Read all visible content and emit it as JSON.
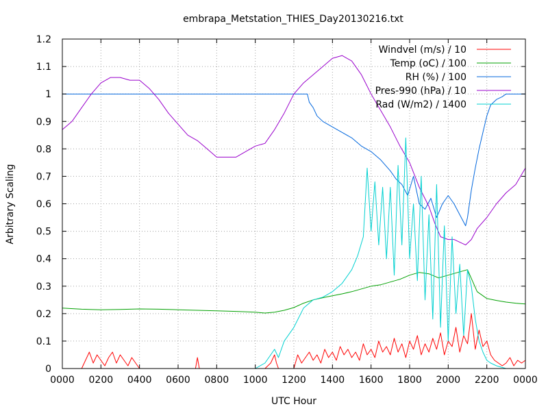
{
  "chart_data": {
    "type": "line",
    "title": "embrapa_Metstation_THIES_Day20130216.txt",
    "xlabel": "UTC Hour",
    "ylabel": "Arbitrary Scaling",
    "xlim": [
      0,
      24
    ],
    "ylim": [
      0,
      1.2
    ],
    "x_ticks": [
      "0000",
      "0200",
      "0400",
      "0600",
      "0800",
      "1000",
      "1200",
      "1400",
      "1600",
      "1800",
      "2000",
      "2200",
      "0000"
    ],
    "y_ticks": [
      "0",
      "0.1",
      "0.2",
      "0.3",
      "0.4",
      "0.5",
      "0.6",
      "0.7",
      "0.8",
      "0.9",
      "1",
      "1.1",
      "1.2"
    ],
    "grid": true,
    "legend_position": "top-right",
    "series": [
      {
        "name": "Windvel (m/s) / 10",
        "color": "#ff0000",
        "x": [
          0,
          1,
          1.2,
          1.4,
          1.6,
          1.8,
          2,
          2.2,
          2.4,
          2.6,
          2.8,
          3,
          3.2,
          3.4,
          3.6,
          3.8,
          4,
          6.9,
          7,
          7.1,
          10.5,
          10.8,
          11,
          11.1,
          11.2,
          12,
          12.2,
          12.4,
          12.6,
          12.8,
          13,
          13.2,
          13.4,
          13.6,
          13.8,
          14,
          14.2,
          14.4,
          14.6,
          14.8,
          15,
          15.2,
          15.4,
          15.6,
          15.8,
          16,
          16.2,
          16.4,
          16.6,
          16.8,
          17,
          17.2,
          17.4,
          17.6,
          17.8,
          18,
          18.2,
          18.4,
          18.6,
          18.8,
          19,
          19.2,
          19.4,
          19.6,
          19.8,
          20,
          20.2,
          20.4,
          20.6,
          20.8,
          21,
          21.2,
          21.4,
          21.6,
          21.8,
          22,
          22.2,
          22.4,
          22.6,
          22.8,
          23,
          23.2,
          23.4,
          23.6,
          23.8,
          24
        ],
        "y": [
          0,
          0,
          0.03,
          0.06,
          0.02,
          0.05,
          0.03,
          0.01,
          0.04,
          0.06,
          0.02,
          0.05,
          0.03,
          0.01,
          0.04,
          0.02,
          0,
          0,
          0.04,
          0,
          0,
          0.02,
          0.05,
          0.02,
          0,
          0,
          0.05,
          0.02,
          0.04,
          0.06,
          0.03,
          0.05,
          0.02,
          0.07,
          0.04,
          0.06,
          0.03,
          0.08,
          0.05,
          0.07,
          0.04,
          0.06,
          0.03,
          0.09,
          0.05,
          0.07,
          0.04,
          0.1,
          0.06,
          0.08,
          0.05,
          0.11,
          0.06,
          0.09,
          0.04,
          0.1,
          0.07,
          0.12,
          0.05,
          0.09,
          0.06,
          0.11,
          0.07,
          0.13,
          0.05,
          0.1,
          0.08,
          0.15,
          0.06,
          0.12,
          0.09,
          0.2,
          0.07,
          0.14,
          0.08,
          0.1,
          0.05,
          0.03,
          0.02,
          0.01,
          0.02,
          0.04,
          0.01,
          0.03,
          0.02,
          0.03
        ]
      },
      {
        "name": "Temp (oC) / 100",
        "color": "#00a000",
        "x": [
          0,
          1,
          2,
          3,
          4,
          5,
          6,
          7,
          8,
          9,
          10,
          10.5,
          11,
          11.5,
          12,
          12.5,
          13,
          13.5,
          14,
          14.5,
          15,
          15.5,
          16,
          16.5,
          17,
          17.5,
          18,
          18.5,
          19,
          19.5,
          20,
          20.5,
          21,
          21.5,
          22,
          22.5,
          23,
          23.5,
          24
        ],
        "y": [
          0.22,
          0.216,
          0.214,
          0.215,
          0.217,
          0.216,
          0.214,
          0.212,
          0.21,
          0.208,
          0.205,
          0.202,
          0.205,
          0.212,
          0.222,
          0.238,
          0.25,
          0.258,
          0.265,
          0.272,
          0.28,
          0.29,
          0.3,
          0.305,
          0.315,
          0.325,
          0.34,
          0.35,
          0.345,
          0.33,
          0.34,
          0.35,
          0.36,
          0.28,
          0.255,
          0.248,
          0.242,
          0.238,
          0.235
        ]
      },
      {
        "name": "RH (%) / 100",
        "color": "#0066dd",
        "x": [
          0,
          2,
          4,
          6,
          8,
          10,
          12,
          12.7,
          12.8,
          13,
          13.2,
          13.5,
          14,
          14.5,
          15,
          15.5,
          16,
          16.5,
          17,
          17.3,
          17.6,
          17.9,
          18.2,
          18.5,
          18.8,
          19.1,
          19.4,
          19.7,
          20,
          20.3,
          20.6,
          20.9,
          21,
          21.2,
          21.4,
          21.6,
          21.8,
          22,
          22.2,
          22.5,
          22.8,
          23,
          23.3,
          24
        ],
        "y": [
          1,
          1,
          1,
          1,
          1,
          1,
          1,
          1,
          0.97,
          0.95,
          0.92,
          0.9,
          0.88,
          0.86,
          0.84,
          0.81,
          0.79,
          0.76,
          0.72,
          0.69,
          0.67,
          0.63,
          0.7,
          0.6,
          0.58,
          0.62,
          0.55,
          0.6,
          0.63,
          0.6,
          0.56,
          0.52,
          0.55,
          0.65,
          0.73,
          0.8,
          0.86,
          0.92,
          0.96,
          0.98,
          0.99,
          1,
          1,
          1
        ]
      },
      {
        "name": "Pres-990 (hPa) / 10",
        "color": "#9900cc",
        "x": [
          0,
          0.5,
          1,
          1.5,
          2,
          2.5,
          3,
          3.5,
          4,
          4.5,
          5,
          5.5,
          6,
          6.5,
          7,
          7.5,
          8,
          8.5,
          9,
          9.5,
          10,
          10.5,
          11,
          11.5,
          12,
          12.5,
          13,
          13.5,
          14,
          14.5,
          15,
          15.5,
          16,
          16.5,
          17,
          17.5,
          18,
          18.5,
          19,
          19.3,
          19.6,
          20,
          20.3,
          20.6,
          20.9,
          21.2,
          21.5,
          22,
          22.5,
          23,
          23.5,
          24
        ],
        "y": [
          0.87,
          0.9,
          0.95,
          1.0,
          1.04,
          1.06,
          1.06,
          1.05,
          1.05,
          1.02,
          0.98,
          0.93,
          0.89,
          0.85,
          0.83,
          0.8,
          0.77,
          0.77,
          0.77,
          0.79,
          0.81,
          0.82,
          0.87,
          0.93,
          1.0,
          1.04,
          1.07,
          1.1,
          1.13,
          1.14,
          1.12,
          1.07,
          1.0,
          0.94,
          0.88,
          0.81,
          0.75,
          0.66,
          0.59,
          0.53,
          0.48,
          0.47,
          0.47,
          0.46,
          0.45,
          0.47,
          0.51,
          0.55,
          0.6,
          0.64,
          0.67,
          0.73
        ]
      },
      {
        "name": "Rad (W/m2) / 1400",
        "color": "#00d0d0",
        "x": [
          0,
          5,
          10,
          10.5,
          10.8,
          11,
          11.2,
          11.5,
          12,
          12.5,
          13,
          13.5,
          14,
          14.5,
          15,
          15.3,
          15.6,
          15.8,
          16,
          16.2,
          16.4,
          16.6,
          16.8,
          17,
          17.2,
          17.4,
          17.6,
          17.8,
          18,
          18.2,
          18.4,
          18.6,
          18.8,
          19,
          19.2,
          19.4,
          19.6,
          19.8,
          20,
          20.2,
          20.4,
          20.6,
          20.8,
          21,
          21.2,
          21.4,
          21.6,
          21.8,
          22,
          22.2,
          22.5,
          23,
          24
        ],
        "y": [
          0,
          0,
          0,
          0.02,
          0.05,
          0.07,
          0.04,
          0.1,
          0.15,
          0.22,
          0.25,
          0.26,
          0.28,
          0.31,
          0.36,
          0.41,
          0.48,
          0.73,
          0.5,
          0.68,
          0.45,
          0.66,
          0.4,
          0.66,
          0.34,
          0.74,
          0.45,
          0.84,
          0.4,
          0.6,
          0.32,
          0.7,
          0.25,
          0.56,
          0.18,
          0.67,
          0.15,
          0.52,
          0.1,
          0.48,
          0.2,
          0.38,
          0.12,
          0.36,
          0.3,
          0.18,
          0.1,
          0.06,
          0.03,
          0.02,
          0.01,
          0,
          0
        ]
      }
    ]
  }
}
